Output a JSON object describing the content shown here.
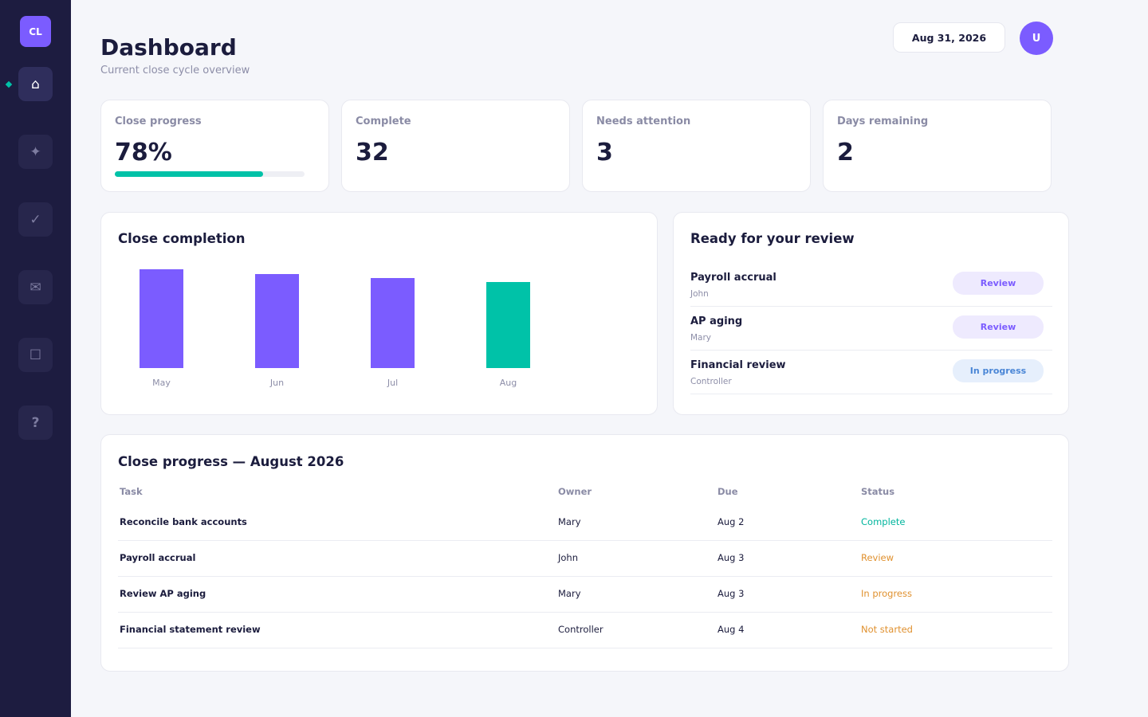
{
  "sidebar": {
    "logo": "CL",
    "items": [
      {
        "name": "nav-home",
        "icon": "home-icon",
        "glyph": "⌂",
        "active": true
      },
      {
        "name": "nav-sparkle",
        "icon": "sparkle-icon",
        "glyph": "✦"
      },
      {
        "name": "nav-tasks",
        "icon": "check-icon",
        "glyph": "✓"
      },
      {
        "name": "nav-messages",
        "icon": "envelope-icon",
        "glyph": "✉"
      },
      {
        "name": "nav-documents",
        "icon": "square-icon",
        "glyph": "☐"
      },
      {
        "name": "nav-help",
        "icon": "help-icon",
        "glyph": "?"
      }
    ]
  },
  "header": {
    "title": "Dashboard",
    "subtitle": "Current close cycle overview",
    "date": "Aug 31, 2026",
    "avatar": "U"
  },
  "stats": [
    {
      "label": "Close progress",
      "value": "78%",
      "progress": 0.78
    },
    {
      "label": "Complete",
      "value": "32"
    },
    {
      "label": "Needs attention",
      "value": "3"
    },
    {
      "label": "Days remaining",
      "value": "2"
    }
  ],
  "chart": {
    "title": "Close completion"
  },
  "chart_data": {
    "type": "bar",
    "categories": [
      "May",
      "Jun",
      "Jul",
      "Aug"
    ],
    "values": [
      98,
      93,
      89,
      85
    ],
    "ylim": [
      0,
      100
    ],
    "title": "Close completion",
    "xlabel": "",
    "ylabel": "",
    "colors": [
      "#7b5cff",
      "#7b5cff",
      "#7b5cff",
      "#00c2a8"
    ],
    "grid": false
  },
  "review": {
    "title": "Ready for your review",
    "items": [
      {
        "name": "Payroll accrual",
        "owner": "John",
        "action": "Review"
      },
      {
        "name": "AP aging",
        "owner": "Mary",
        "action": "Review"
      },
      {
        "name": "Financial review",
        "owner": "Controller",
        "action": "In progress"
      }
    ]
  },
  "table": {
    "title": "Close progress — August 2026",
    "headers": [
      "Task",
      "Owner",
      "Due",
      "Status"
    ],
    "rows": [
      {
        "task": "Reconcile bank accounts",
        "owner": "Mary",
        "due": "Aug 2",
        "status": "Complete",
        "status_color": "#00b59d"
      },
      {
        "task": "Payroll accrual",
        "owner": "John",
        "due": "Aug 3",
        "status": "Review",
        "status_color": "#e0912f"
      },
      {
        "task": "Review AP aging",
        "owner": "Mary",
        "due": "Aug 3",
        "status": "In progress",
        "status_color": "#e0912f"
      },
      {
        "task": "Financial statement review",
        "owner": "Controller",
        "due": "Aug 4",
        "status": "Not started",
        "status_color": "#e0912f"
      }
    ]
  },
  "colors": {
    "accent": "#7b5cff",
    "teal": "#00c2a8",
    "sidebar": "#1d1c40"
  }
}
